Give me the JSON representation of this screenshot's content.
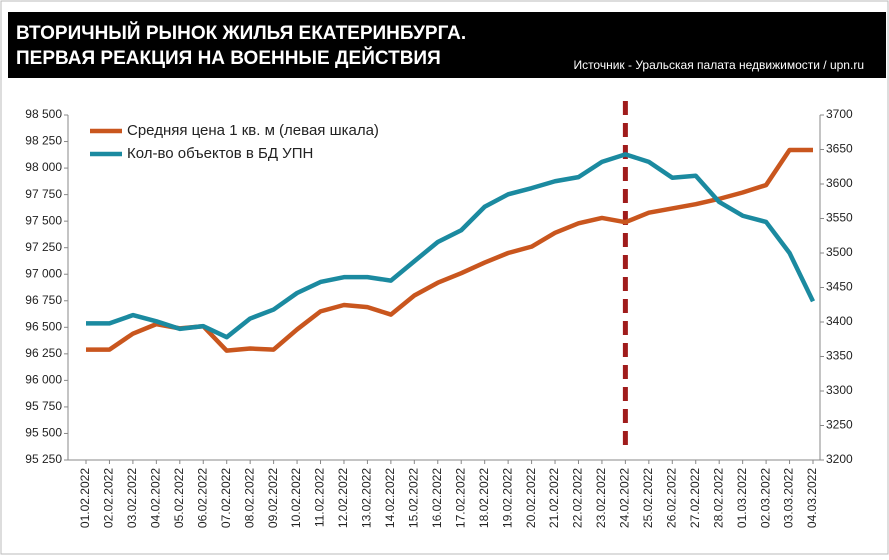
{
  "chart_data": {
    "type": "line",
    "title": "ВТОРИЧНЫЙ РЫНОК ЖИЛЬЯ ЕКАТЕРИНБУРГА.",
    "subtitle": "ПЕРВАЯ РЕАКЦИЯ НА ВОЕННЫЕ ДЕЙСТВИЯ",
    "source": "Источник - Уральская палата недвижимости / upn.ru",
    "categories": [
      "01.02.2022",
      "02.02.2022",
      "03.02.2022",
      "04.02.2022",
      "05.02.2022",
      "06.02.2022",
      "07.02.2022",
      "08.02.2022",
      "09.02.2022",
      "10.02.2022",
      "11.02.2022",
      "12.02.2022",
      "13.02.2022",
      "14.02.2022",
      "15.02.2022",
      "16.02.2022",
      "17.02.2022",
      "18.02.2022",
      "19.02.2022",
      "20.02.2022",
      "21.02.2022",
      "22.02.2022",
      "23.02.2022",
      "24.02.2022",
      "25.02.2022",
      "26.02.2022",
      "27.02.2022",
      "28.02.2022",
      "01.03.2022",
      "02.03.2022",
      "03.03.2022",
      "04.03.2022"
    ],
    "series": [
      {
        "name": "Средняя цена 1 кв. м (левая шкала)",
        "color": "#c9561e",
        "values": [
          96290,
          96290,
          96440,
          96530,
          96490,
          96510,
          96280,
          96300,
          96290,
          96480,
          96650,
          96710,
          96690,
          96620,
          96800,
          96920,
          97010,
          97110,
          97200,
          97260,
          97390,
          97480,
          97530,
          97490,
          97580,
          97620,
          97660,
          97710,
          97770,
          97840,
          98170,
          98170
        ]
      },
      {
        "name": "Кол-во объектов в БД УПН",
        "color": "#1b8aa0",
        "axis": "y2",
        "values": [
          3398,
          3398,
          3410,
          3401,
          3390,
          3394,
          3378,
          3405,
          3418,
          3442,
          3458,
          3465,
          3465,
          3460,
          3488,
          3516,
          3533,
          3567,
          3585,
          3594,
          3604,
          3610,
          3632,
          3643,
          3632,
          3609,
          3612,
          3574,
          3554,
          3545,
          3500,
          3430
        ]
      }
    ],
    "ylim": [
      95250,
      98500
    ],
    "yticks": [
      {
        "value": 95250,
        "label": "95 250"
      },
      {
        "value": 95500,
        "label": "95 500"
      },
      {
        "value": 95750,
        "label": "95 750"
      },
      {
        "value": 96000,
        "label": "96 000"
      },
      {
        "value": 96250,
        "label": "96 250"
      },
      {
        "value": 96500,
        "label": "96 500"
      },
      {
        "value": 96750,
        "label": "96 750"
      },
      {
        "value": 97000,
        "label": "97 000"
      },
      {
        "value": 97250,
        "label": "97 250"
      },
      {
        "value": 97500,
        "label": "97 500"
      },
      {
        "value": 97750,
        "label": "97 750"
      },
      {
        "value": 98000,
        "label": "98 000"
      },
      {
        "value": 98250,
        "label": "98 250"
      },
      {
        "value": 98500,
        "label": "98 500"
      }
    ],
    "y2lim": [
      3200,
      3700
    ],
    "y2ticks": [
      3200,
      3250,
      3300,
      3350,
      3400,
      3450,
      3500,
      3550,
      3600,
      3650,
      3700
    ],
    "vline": {
      "x": "24.02.2022",
      "color": "#a01c1c"
    },
    "legend": "top-left",
    "grid": false
  }
}
